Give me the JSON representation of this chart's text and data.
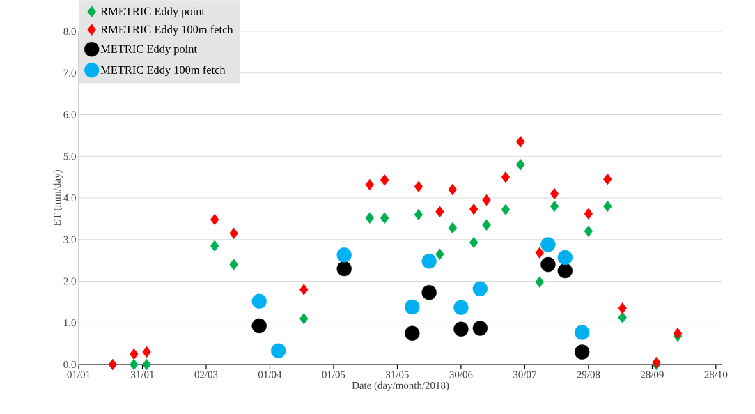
{
  "chart_data": {
    "type": "scatter",
    "xlabel": "Date (day/month/2018)",
    "ylabel": "ET (mm/day)",
    "xlim": [
      "2018-01-01",
      "2018-10-31"
    ],
    "ylim": [
      0,
      8
    ],
    "xticks": [
      {
        "value": "2018-01-01",
        "label": "01/01"
      },
      {
        "value": "2018-01-31",
        "label": "31/01"
      },
      {
        "value": "2018-03-02",
        "label": "02/03"
      },
      {
        "value": "2018-04-01",
        "label": "01/04"
      },
      {
        "value": "2018-05-01",
        "label": "01/05"
      },
      {
        "value": "2018-05-31",
        "label": "31/05"
      },
      {
        "value": "2018-06-30",
        "label": "30/06"
      },
      {
        "value": "2018-07-30",
        "label": "30/07"
      },
      {
        "value": "2018-08-29",
        "label": "29/08"
      },
      {
        "value": "2018-09-28",
        "label": "28/09"
      },
      {
        "value": "2018-10-28",
        "label": "28/10"
      }
    ],
    "yticks": [
      {
        "value": 0,
        "label": "0.0"
      },
      {
        "value": 1,
        "label": "1.0"
      },
      {
        "value": 2,
        "label": "2.0"
      },
      {
        "value": 3,
        "label": "3.0"
      },
      {
        "value": 4,
        "label": "4.0"
      },
      {
        "value": 5,
        "label": "5.0"
      },
      {
        "value": 6,
        "label": "6.0"
      },
      {
        "value": 7,
        "label": "7.0"
      },
      {
        "value": 8,
        "label": "8.0"
      }
    ],
    "grid": "y",
    "legend": "top left",
    "series": [
      {
        "name": "RMETRIC Eddy point",
        "color": "#00b050",
        "marker": "diamond",
        "x": [
          "2018-01-27",
          "2018-02-02",
          "2018-03-06",
          "2018-03-15",
          "2018-04-17",
          "2018-05-18",
          "2018-05-25",
          "2018-06-10",
          "2018-06-20",
          "2018-06-26",
          "2018-07-06",
          "2018-07-12",
          "2018-07-21",
          "2018-07-28",
          "2018-08-06",
          "2018-08-13",
          "2018-08-29",
          "2018-09-07",
          "2018-09-14",
          "2018-09-30",
          "2018-10-10"
        ],
        "values": [
          0.0,
          0.0,
          2.85,
          2.4,
          1.1,
          3.52,
          3.52,
          3.6,
          2.65,
          3.28,
          2.93,
          3.35,
          3.72,
          4.8,
          1.98,
          3.8,
          3.2,
          3.8,
          1.13,
          0.0,
          0.68
        ]
      },
      {
        "name": "RMETRIC Eddy 100m fetch",
        "color": "#ff0000",
        "marker": "diamond",
        "x": [
          "2018-01-17",
          "2018-01-27",
          "2018-02-02",
          "2018-03-06",
          "2018-03-15",
          "2018-04-17",
          "2018-05-18",
          "2018-05-25",
          "2018-06-10",
          "2018-06-20",
          "2018-06-26",
          "2018-07-06",
          "2018-07-12",
          "2018-07-21",
          "2018-07-28",
          "2018-08-06",
          "2018-08-13",
          "2018-08-29",
          "2018-09-07",
          "2018-09-14",
          "2018-09-30",
          "2018-10-10"
        ],
        "values": [
          0.0,
          0.25,
          0.3,
          3.48,
          3.15,
          1.8,
          4.32,
          4.43,
          4.27,
          3.67,
          4.2,
          3.73,
          3.95,
          4.5,
          5.35,
          2.68,
          4.1,
          3.62,
          4.45,
          1.35,
          0.05,
          0.75
        ]
      },
      {
        "name": "METRIC Eddy point",
        "color": "#000000",
        "marker": "circle",
        "x": [
          "2018-03-27",
          "2018-05-06",
          "2018-06-07",
          "2018-06-15",
          "2018-06-30",
          "2018-07-09",
          "2018-08-10",
          "2018-08-18",
          "2018-08-26"
        ],
        "values": [
          0.93,
          2.3,
          0.75,
          1.73,
          0.85,
          0.87,
          2.4,
          2.25,
          0.3
        ]
      },
      {
        "name": "METRIC Eddy 100m fetch",
        "color": "#00b0f0",
        "marker": "circle",
        "x": [
          "2018-03-27",
          "2018-04-05",
          "2018-05-06",
          "2018-06-07",
          "2018-06-15",
          "2018-06-30",
          "2018-07-09",
          "2018-08-10",
          "2018-08-18",
          "2018-08-26"
        ],
        "values": [
          1.52,
          0.33,
          2.63,
          1.38,
          2.48,
          1.37,
          1.82,
          2.88,
          2.57,
          0.77
        ]
      }
    ]
  }
}
